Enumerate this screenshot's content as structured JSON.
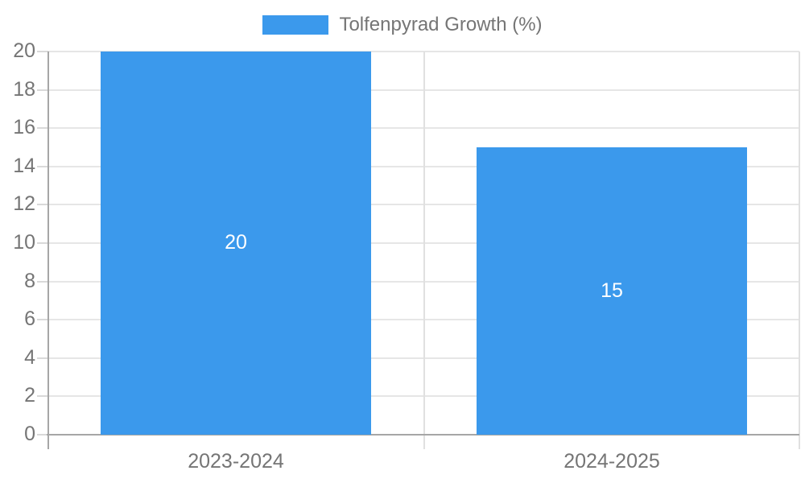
{
  "chart_data": {
    "type": "bar",
    "title": "",
    "legend": "Tolfenpyrad Growth (%)",
    "legend_position": "top-center",
    "categories": [
      "2023-2024",
      "2024-2025"
    ],
    "values": [
      20,
      15
    ],
    "value_labels": [
      "20",
      "15"
    ],
    "xlabel": "",
    "ylabel": "",
    "ylim": [
      0,
      20
    ],
    "ytick_step": 2,
    "grid": true,
    "colors": {
      "bar": "#3B99EC",
      "axis_text": "#757575",
      "value_label": "#FFFFFF",
      "gridline": "#E6E6E6",
      "separator": "#E0E0E0",
      "axis_line": "#A6A6A6",
      "tick_mark": "#D9D9D9",
      "background": "#FFFFFF"
    }
  }
}
